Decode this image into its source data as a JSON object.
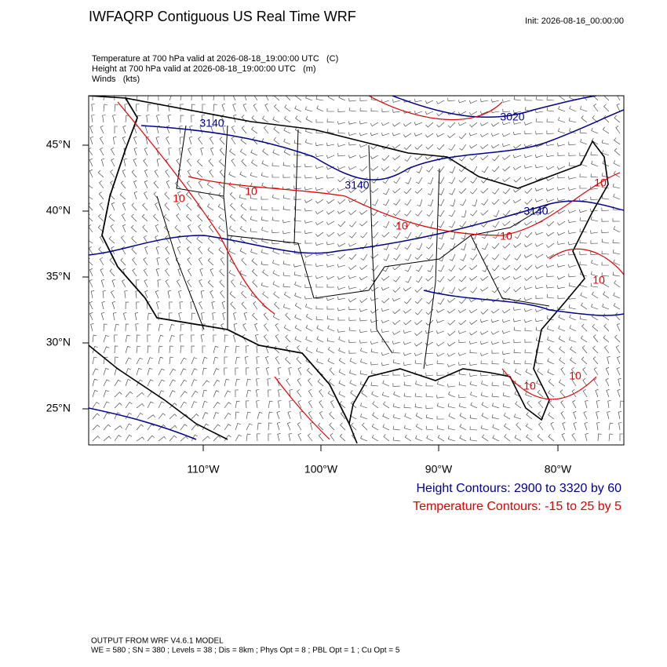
{
  "header": {
    "title": "IWFAQRP Contiguous US Real Time WRF",
    "init": "Init: 2026-08-16_00:00:00"
  },
  "fields": [
    "Temperature at 700 hPa valid at 2026-08-18_19:00:00 UTC   (C)",
    "Height at 700 hPa valid at 2026-08-18_19:00:00 UTC   (m)",
    "Winds   (kts)"
  ],
  "map": {
    "lat_labels": [
      "45°N",
      "40°N",
      "35°N",
      "30°N",
      "25°N"
    ],
    "lon_labels": [
      "110°W",
      "100°W",
      "90°W",
      "80°W"
    ],
    "height_labels": [
      "3140",
      "3020",
      "3140",
      "3140"
    ],
    "temp_labels": [
      "10",
      "10",
      "10",
      "10",
      "10",
      "10",
      "10",
      "10"
    ]
  },
  "legend": {
    "height": "Height Contours: 2900 to 3320 by 60",
    "temperature": "Temperature Contours: -15 to 25 by 5"
  },
  "footer": {
    "model": "OUTPUT FROM WRF V4.6.1 MODEL",
    "settings": "WE = 580 ; SN = 380 ; Levels = 38 ; Dis = 8km ; Phys Opt = 8 ; PBL Opt = 1 ; Cu Opt = 5"
  }
}
